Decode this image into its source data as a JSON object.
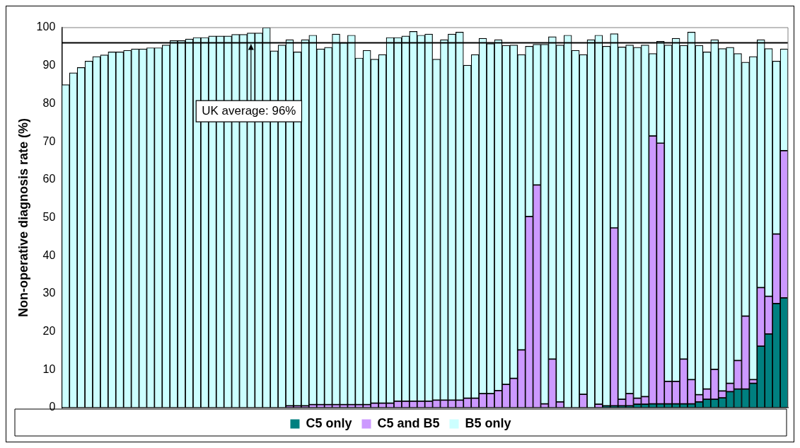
{
  "chart_data": {
    "type": "bar",
    "stacked": true,
    "ylabel": "Non-operative diagnosis rate (%)",
    "categories": [
      null,
      null,
      null,
      null,
      null,
      null,
      null,
      null,
      null,
      null,
      null,
      null,
      null,
      null,
      null,
      null,
      null,
      null,
      null,
      null,
      null,
      null,
      null,
      null,
      null,
      null,
      null,
      null,
      null,
      null,
      null,
      null,
      null,
      null,
      null,
      null,
      null,
      null,
      null,
      null,
      null,
      null,
      null,
      null,
      null,
      null,
      null,
      null,
      null,
      null,
      null,
      null,
      null,
      null,
      null,
      null,
      null,
      null,
      null,
      null,
      null,
      null,
      null,
      null,
      null,
      null,
      null,
      null,
      null,
      null,
      null,
      null,
      null,
      null,
      null,
      null,
      null,
      null,
      null,
      null,
      null,
      null,
      null,
      null,
      null,
      null,
      null,
      null,
      null,
      null,
      null,
      null,
      null,
      null
    ],
    "series": [
      {
        "name": "C5 only",
        "color": "#008080",
        "values": [
          0,
          0,
          0,
          0,
          0,
          0,
          0,
          0,
          0,
          0,
          0,
          0,
          0,
          0,
          0,
          0,
          0,
          0,
          0,
          0,
          0,
          0,
          0,
          0,
          0,
          0,
          0,
          0,
          0,
          0,
          0,
          0,
          0,
          0,
          0,
          0,
          0,
          0,
          0,
          0,
          0,
          0,
          0,
          0,
          0,
          0,
          0,
          0,
          0,
          0,
          0,
          0,
          0,
          0,
          0,
          0,
          0,
          0,
          0,
          0,
          0,
          0,
          0,
          0,
          0,
          0,
          0,
          0,
          0,
          0,
          0.5,
          0.5,
          0.5,
          0.5,
          0.9,
          0.9,
          1.0,
          1.0,
          1.0,
          1.0,
          1.0,
          1.0,
          1.5,
          2.2,
          2.2,
          2.6,
          4.2,
          4.9,
          4.9,
          6.4,
          16.2,
          19.4,
          27.4,
          28.9
        ]
      },
      {
        "name": "C5 and B5",
        "color": "#cc99ff",
        "values": [
          0,
          0,
          0,
          0,
          0,
          0,
          0,
          0,
          0,
          0,
          0,
          0,
          0,
          0,
          0,
          0,
          0,
          0,
          0,
          0,
          0,
          0,
          0,
          0,
          0,
          0,
          0,
          0,
          0,
          0.5,
          0.5,
          0.5,
          0.8,
          0.8,
          0.8,
          0.8,
          0.8,
          0.8,
          0.8,
          0.8,
          1.2,
          1.2,
          1.2,
          1.7,
          1.7,
          1.7,
          1.7,
          1.7,
          2.0,
          2.0,
          2.0,
          2.0,
          2.5,
          2.5,
          3.7,
          3.7,
          4.5,
          6.1,
          7.7,
          15.2,
          50.3,
          58.6,
          1.0,
          12.8,
          1.5,
          0,
          0,
          3.5,
          0,
          0.9,
          null,
          46.8,
          1.7,
          3.2,
          1.6,
          2.0,
          70.5,
          68.6,
          5.9,
          5.9,
          11.8,
          6.4,
          1.9,
          2.7,
          7.9,
          1.8,
          2.2,
          7.5,
          19.2,
          1.0,
          15.4,
          9.9,
          18.3,
          38.7
        ]
      },
      {
        "name": "B5 only",
        "color": "#ccffff",
        "values": [
          85,
          88.1,
          89.5,
          91.2,
          92.4,
          92.8,
          93.6,
          93.6,
          94,
          94.4,
          94.4,
          94.7,
          94.7,
          95.4,
          96.6,
          96.6,
          97,
          97.4,
          97.4,
          97.8,
          97.8,
          97.8,
          98.2,
          98.2,
          98.6,
          98.6,
          100,
          93.9,
          95.4,
          96.3,
          93.1,
          96.3,
          97.2,
          93.6,
          94.0,
          97.5,
          95.2,
          97.2,
          91.2,
          93.2,
          90.5,
          91.7,
          96.2,
          95.7,
          96.1,
          97.3,
          96.3,
          96.6,
          89.7,
          94.8,
          96.3,
          96.8,
          87.6,
          90.4,
          93.5,
          92.1,
          92.3,
          89.2,
          87.7,
          77.7,
          44.8,
          37.0,
          94.6,
          84.8,
          93.9,
          98,
          94,
          89.4,
          96.8,
          97.1,
          94.6,
          51.1,
          92.7,
          91.7,
          92.3,
          92.5,
          21.7,
          26.8,
          88.5,
          90.3,
          82.5,
          91.4,
          91.9,
          88.7,
          86.7,
          90.1,
          88.4,
          80.8,
          66.8,
          85.0,
          65.2,
          65.2,
          45.5,
          26.8
        ]
      }
    ],
    "ylim": [
      0,
      100
    ],
    "yticks": [
      0,
      10,
      20,
      30,
      40,
      50,
      60,
      70,
      80,
      90,
      100
    ],
    "ref_lines": [
      {
        "axis": "y",
        "value": 96,
        "label": "UK average: 96%",
        "color": "#000000"
      }
    ],
    "legend": "bottom",
    "tick_labels": "y"
  }
}
